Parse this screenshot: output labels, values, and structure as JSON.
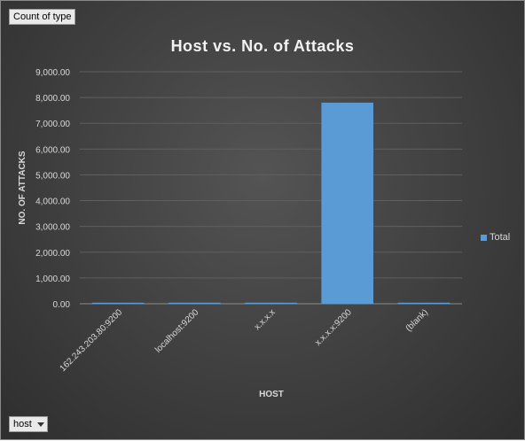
{
  "pivot": {
    "value_field": "Count of type",
    "axis_field": "host"
  },
  "chart_data": {
    "type": "bar",
    "title": "Host vs. No. of Attacks",
    "xlabel": "HOST",
    "ylabel": "NO. OF ATTACKS",
    "categories": [
      "162.243.203.80:9200",
      "localhost:9200",
      "x.x.x.x",
      "x.x.x.x:9200",
      "(blank)"
    ],
    "series": [
      {
        "name": "Total",
        "values": [
          2,
          3,
          1,
          7800,
          0
        ],
        "color": "#5b9bd5"
      }
    ],
    "ylim": [
      0,
      9000
    ],
    "yticks": [
      "0.00",
      "1,000.00",
      "2,000.00",
      "3,000.00",
      "4,000.00",
      "5,000.00",
      "6,000.00",
      "7,000.00",
      "8,000.00",
      "9,000.00"
    ],
    "grid": true,
    "legend_position": "right"
  }
}
